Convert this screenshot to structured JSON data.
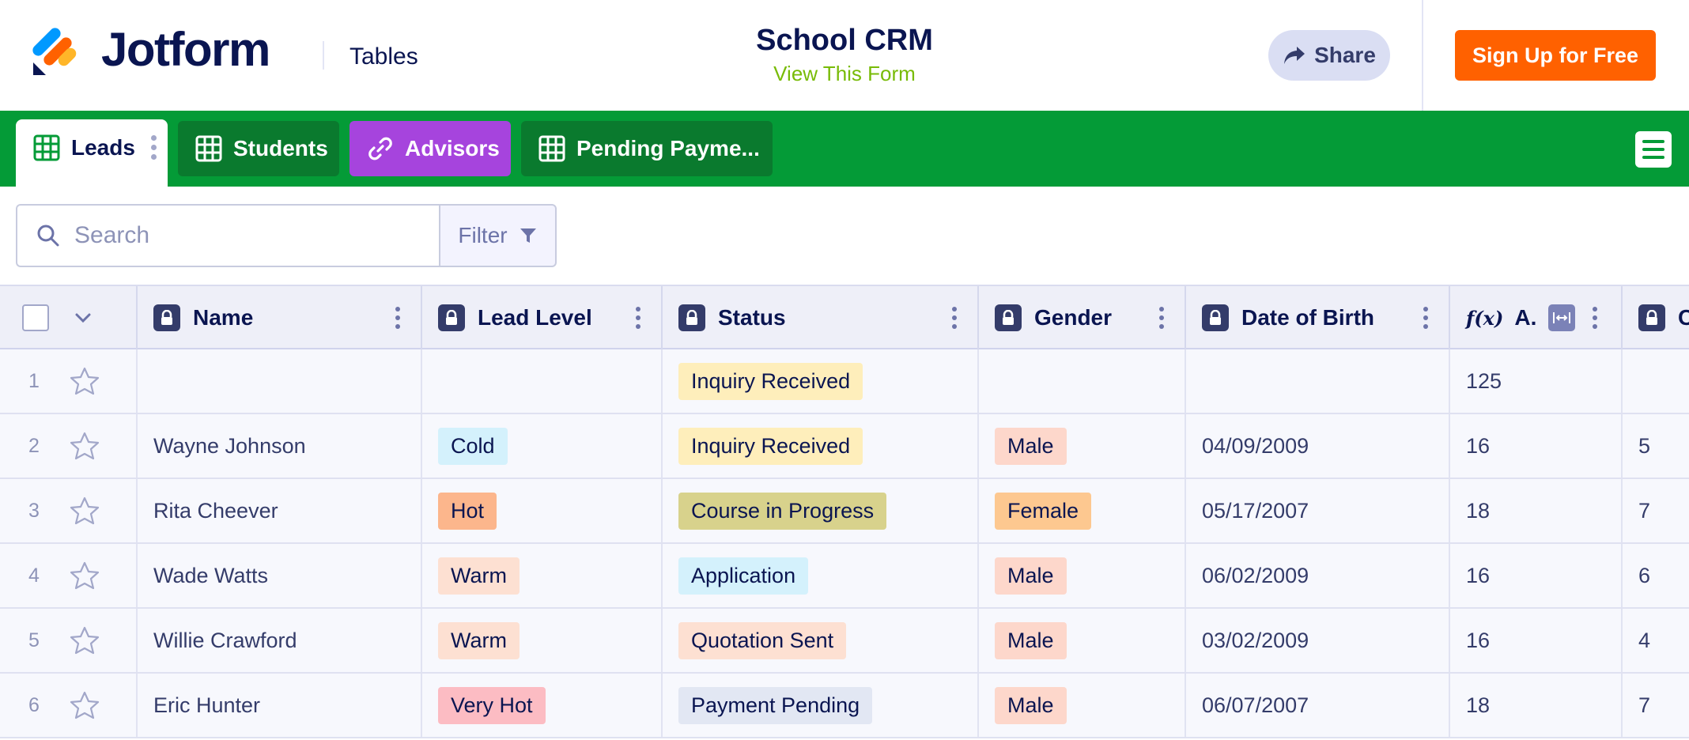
{
  "header": {
    "logo_text": "Jotform",
    "logo_sub": "Tables",
    "title": "School CRM",
    "view_form": "View This Form",
    "share_label": "Share",
    "signup_label": "Sign Up for Free"
  },
  "tabs": [
    {
      "label": "Leads",
      "icon": "grid-icon",
      "style": "active"
    },
    {
      "label": "Students",
      "icon": "grid-icon",
      "style": "dark"
    },
    {
      "label": "Advisors",
      "icon": "link-icon",
      "style": "purple"
    },
    {
      "label": "Pending Payme...",
      "icon": "grid-icon",
      "style": "dark"
    }
  ],
  "search": {
    "placeholder": "Search",
    "filter_label": "Filter"
  },
  "columns": {
    "name": "Name",
    "lead_level": "Lead Level",
    "status": "Status",
    "gender": "Gender",
    "dob": "Date of Birth",
    "formula": "A.",
    "formula_icon": "f(x)",
    "next": "C"
  },
  "rows": [
    {
      "num": "1",
      "name": "",
      "lead": "",
      "status": "Inquiry Received",
      "gender": "",
      "dob": "",
      "age": "125",
      "extra": ""
    },
    {
      "num": "2",
      "name": "Wayne Johnson",
      "lead": "Cold",
      "status": "Inquiry Received",
      "gender": "Male",
      "dob": "04/09/2009",
      "age": "16",
      "extra": "5"
    },
    {
      "num": "3",
      "name": "Rita Cheever",
      "lead": "Hot",
      "status": "Course in Progress",
      "gender": "Female",
      "dob": "05/17/2007",
      "age": "18",
      "extra": "7"
    },
    {
      "num": "4",
      "name": "Wade Watts",
      "lead": "Warm",
      "status": "Application",
      "gender": "Male",
      "dob": "06/02/2009",
      "age": "16",
      "extra": "6"
    },
    {
      "num": "5",
      "name": "Willie Crawford",
      "lead": "Warm",
      "status": "Quotation Sent",
      "gender": "Male",
      "dob": "03/02/2009",
      "age": "16",
      "extra": "4"
    },
    {
      "num": "6",
      "name": "Eric Hunter",
      "lead": "Very Hot",
      "status": "Payment Pending",
      "gender": "Male",
      "dob": "06/07/2007",
      "age": "18",
      "extra": "7"
    }
  ],
  "tag_colors": {
    "Cold": "#d4f1fc",
    "Hot": "#fcb68c",
    "Warm": "#fde0d2",
    "Very Hot": "#fcbcc3",
    "Inquiry Received": "#feeebb",
    "Course in Progress": "#d8d28c",
    "Application": "#d4f1fc",
    "Quotation Sent": "#fde0d2",
    "Payment Pending": "#e2e7f3",
    "Male": "#fdd7cb",
    "Female": "#fdc890"
  },
  "colors": {
    "brand_green": "#049b37",
    "signup_orange": "#ff6100",
    "view_form_green": "#78bb07",
    "advisors_purple": "#a644dd"
  }
}
